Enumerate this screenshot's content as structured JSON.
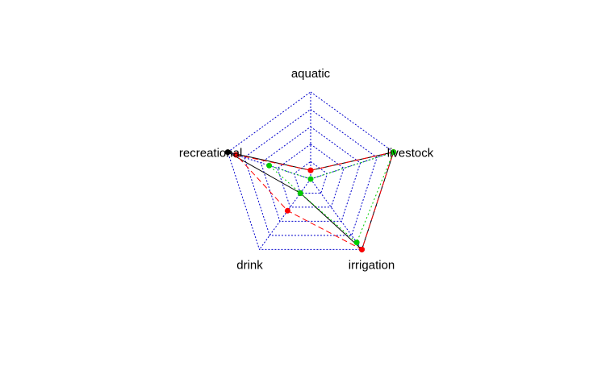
{
  "chart_data": {
    "type": "radar",
    "axes": [
      "aquatic",
      "livestock",
      "irrigation",
      "drink",
      "recreational"
    ],
    "rmax": 1,
    "grid_levels": 5,
    "grid_color": "#0000cc",
    "series": [
      {
        "color": "#000000",
        "line_style": "solid",
        "values": [
          0.1,
          1.0,
          1.0,
          0.2,
          1.0
        ]
      },
      {
        "color": "#ff0000",
        "line_style": "dashed",
        "values": [
          0.1,
          1.0,
          1.0,
          0.45,
          0.9
        ]
      },
      {
        "color": "#00cc00",
        "line_style": "dotted",
        "values": [
          0.0,
          1.0,
          0.9,
          0.2,
          0.5
        ]
      }
    ]
  }
}
